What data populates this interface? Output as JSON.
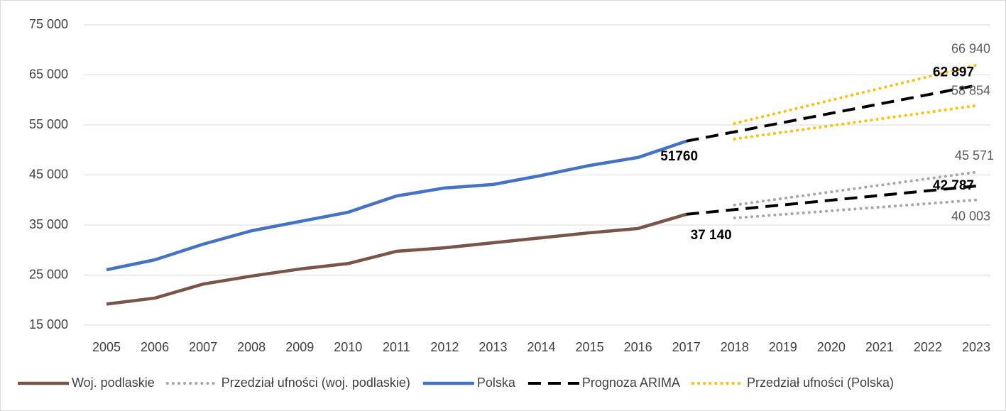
{
  "chart_data": {
    "type": "line",
    "categories": [
      "2005",
      "2006",
      "2007",
      "2008",
      "2009",
      "2010",
      "2011",
      "2012",
      "2013",
      "2014",
      "2015",
      "2016",
      "2017",
      "2018",
      "2019",
      "2020",
      "2021",
      "2022",
      "2023"
    ],
    "ylim": [
      15000,
      75000
    ],
    "yticks": [
      {
        "value": 15000,
        "label": "15 000"
      },
      {
        "value": 25000,
        "label": "25 000"
      },
      {
        "value": 35000,
        "label": "35 000"
      },
      {
        "value": 45000,
        "label": "45 000"
      },
      {
        "value": 55000,
        "label": "55 000"
      },
      {
        "value": 65000,
        "label": "65 000"
      },
      {
        "value": 75000,
        "label": "75 000"
      }
    ],
    "grid": true,
    "legend": "bottom",
    "series": [
      {
        "name": "Woj. podlaskie",
        "color": "#7a5448",
        "style": "solid",
        "values": [
          19200,
          20400,
          23200,
          24800,
          26200,
          27300,
          29750,
          30450,
          31450,
          32450,
          33450,
          34300,
          37140,
          null,
          null,
          null,
          null,
          null,
          null
        ],
        "value_labels": [
          null,
          null,
          null,
          null,
          null,
          null,
          null,
          null,
          null,
          null,
          null,
          null,
          "37 140",
          null,
          null,
          null,
          null,
          null,
          null
        ]
      },
      {
        "name": "Przedział ufności (woj. podlaskie)",
        "color": "#a6a6a6",
        "style": "dotted",
        "values": [
          null,
          null,
          null,
          null,
          null,
          null,
          null,
          null,
          null,
          null,
          null,
          null,
          null,
          39000,
          40314,
          41628,
          42943,
          44257,
          45571
        ],
        "value_labels": [
          null,
          null,
          null,
          null,
          null,
          null,
          null,
          null,
          null,
          null,
          null,
          null,
          null,
          null,
          null,
          null,
          null,
          null,
          "45 571"
        ]
      },
      {
        "color": "#a6a6a6",
        "style": "dotted",
        "values": [
          null,
          null,
          null,
          null,
          null,
          null,
          null,
          null,
          null,
          null,
          null,
          null,
          null,
          36400,
          37121,
          37841,
          38562,
          39282,
          40003
        ],
        "value_labels": [
          null,
          null,
          null,
          null,
          null,
          null,
          null,
          null,
          null,
          null,
          null,
          null,
          null,
          null,
          null,
          null,
          null,
          null,
          "40 003"
        ]
      },
      {
        "name": "Polska",
        "color": "#4472c4",
        "style": "solid",
        "values": [
          26060,
          28050,
          31170,
          33850,
          35700,
          37550,
          40800,
          42400,
          43100,
          44900,
          46900,
          48500,
          51760,
          null,
          null,
          null,
          null,
          null,
          null
        ],
        "value_labels": [
          null,
          null,
          null,
          null,
          null,
          null,
          null,
          null,
          null,
          null,
          null,
          null,
          "51760",
          null,
          null,
          null,
          null,
          null,
          null
        ]
      },
      {
        "name": "Prognoza ARIMA",
        "color": "#000000",
        "style": "dashed",
        "values": [
          null,
          null,
          null,
          null,
          null,
          null,
          null,
          null,
          null,
          null,
          null,
          null,
          51760,
          53616,
          55472,
          57328,
          59185,
          61041,
          62897
        ],
        "value_labels": [
          null,
          null,
          null,
          null,
          null,
          null,
          null,
          null,
          null,
          null,
          null,
          null,
          null,
          null,
          null,
          null,
          null,
          null,
          "62 897"
        ]
      },
      {
        "color": "#000000",
        "style": "dashed",
        "values": [
          null,
          null,
          null,
          null,
          null,
          null,
          null,
          null,
          null,
          null,
          null,
          null,
          37140,
          38081,
          39022,
          39963,
          40905,
          41846,
          42787
        ],
        "value_labels": [
          null,
          null,
          null,
          null,
          null,
          null,
          null,
          null,
          null,
          null,
          null,
          null,
          null,
          null,
          null,
          null,
          null,
          null,
          "42 787"
        ]
      },
      {
        "name": "Przedział ufności (Polska)",
        "color": "#ffc000",
        "style": "dotted",
        "values": [
          null,
          null,
          null,
          null,
          null,
          null,
          null,
          null,
          null,
          null,
          null,
          null,
          null,
          55300,
          57628,
          59956,
          62284,
          64612,
          66940
        ],
        "value_labels": [
          null,
          null,
          null,
          null,
          null,
          null,
          null,
          null,
          null,
          null,
          null,
          null,
          null,
          null,
          null,
          null,
          null,
          null,
          "66 940"
        ]
      },
      {
        "color": "#ffc000",
        "style": "dotted",
        "values": [
          null,
          null,
          null,
          null,
          null,
          null,
          null,
          null,
          null,
          null,
          null,
          null,
          null,
          52200,
          53531,
          54862,
          56192,
          57523,
          58854
        ],
        "value_labels": [
          null,
          null,
          null,
          null,
          null,
          null,
          null,
          null,
          null,
          null,
          null,
          null,
          null,
          null,
          null,
          null,
          null,
          null,
          "58 854"
        ]
      }
    ]
  }
}
